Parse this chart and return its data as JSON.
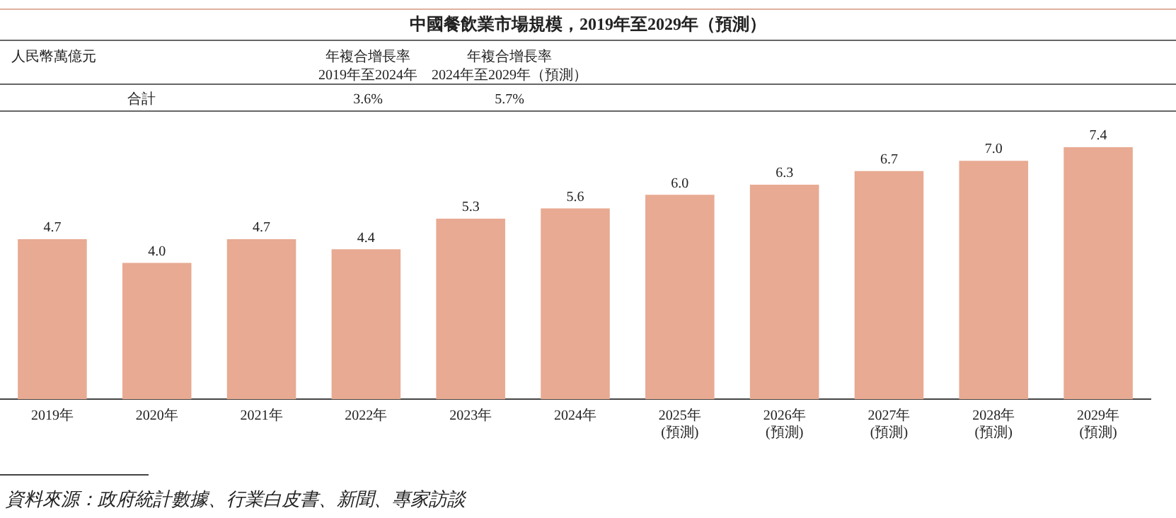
{
  "chart_data": {
    "type": "bar",
    "title": "中國餐飲業市場規模，2019年至2029年（預測）",
    "categories": [
      "2019年",
      "2020年",
      "2021年",
      "2022年",
      "2023年",
      "2024年",
      "2025年\n(預測)",
      "2026年\n(預測)",
      "2027年\n(預測)",
      "2028年\n(預測)",
      "2029年\n(預測)"
    ],
    "values": [
      4.7,
      4.0,
      4.7,
      4.4,
      5.3,
      5.6,
      6.0,
      6.3,
      6.7,
      7.0,
      7.4
    ],
    "value_labels": [
      "4.7",
      "4.0",
      "4.7",
      "4.4",
      "5.3",
      "5.6",
      "6.0",
      "6.3",
      "6.7",
      "7.0",
      "7.4"
    ],
    "color": "#e8aa92",
    "grid": false,
    "legend": false,
    "annotations": [
      "人民幣萬億元",
      "年複合增長率\n2019年至2024年",
      "年複合增長率\n2024年至2029年（預測）",
      "合計",
      "3.6%",
      "5.7%",
      "資料來源：政府統計數據、行業白皮書、新聞、專家訪談"
    ]
  }
}
